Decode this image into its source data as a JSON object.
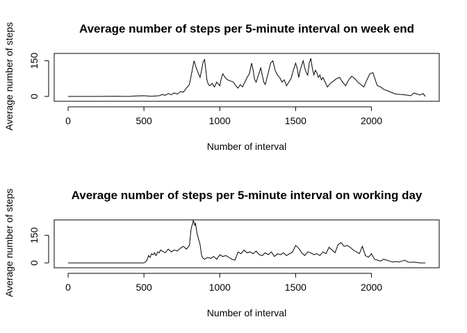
{
  "chart_data": [
    {
      "type": "line",
      "title": "Average number of steps per 5-minute interval on week end",
      "xlabel": "Number of interval",
      "ylabel": "Average number of steps",
      "xlim": [
        0,
        2355
      ],
      "ylim": [
        0,
        175
      ],
      "xticks": [
        0,
        500,
        1000,
        1500,
        2000
      ],
      "yticks": [
        0,
        150
      ],
      "series": [
        {
          "name": "week end",
          "x": [
            0,
            100,
            200,
            300,
            400,
            450,
            500,
            550,
            600,
            620,
            640,
            660,
            680,
            700,
            720,
            740,
            760,
            780,
            800,
            815,
            830,
            845,
            860,
            870,
            880,
            890,
            900,
            910,
            915,
            925,
            935,
            950,
            965,
            980,
            1000,
            1010,
            1020,
            1035,
            1050,
            1070,
            1090,
            1105,
            1120,
            1135,
            1150,
            1165,
            1180,
            1195,
            1210,
            1220,
            1230,
            1240,
            1250,
            1260,
            1270,
            1280,
            1290,
            1300,
            1310,
            1320,
            1335,
            1350,
            1365,
            1380,
            1395,
            1410,
            1425,
            1440,
            1455,
            1470,
            1485,
            1500,
            1510,
            1520,
            1530,
            1540,
            1550,
            1560,
            1570,
            1580,
            1590,
            1600,
            1610,
            1620,
            1630,
            1640,
            1650,
            1660,
            1670,
            1680,
            1695,
            1710,
            1730,
            1750,
            1770,
            1790,
            1810,
            1830,
            1850,
            1870,
            1890,
            1910,
            1930,
            1950,
            1970,
            1990,
            2010,
            2020,
            2030,
            2040,
            2060,
            2080,
            2100,
            2120,
            2140,
            2160,
            2200,
            2240,
            2260,
            2280,
            2300,
            2320,
            2340,
            2355
          ],
          "y": [
            0,
            0,
            0,
            1,
            0,
            2,
            3,
            1,
            3,
            8,
            5,
            12,
            7,
            15,
            10,
            20,
            18,
            35,
            50,
            100,
            150,
            120,
            95,
            80,
            110,
            145,
            155,
            100,
            70,
            50,
            45,
            55,
            40,
            60,
            45,
            75,
            95,
            80,
            70,
            65,
            60,
            45,
            35,
            50,
            40,
            60,
            80,
            95,
            140,
            110,
            70,
            60,
            80,
            100,
            120,
            90,
            60,
            50,
            75,
            100,
            140,
            150,
            110,
            90,
            80,
            60,
            70,
            45,
            60,
            75,
            110,
            140,
            120,
            80,
            110,
            130,
            150,
            120,
            100,
            90,
            140,
            160,
            120,
            90,
            110,
            100,
            80,
            90,
            70,
            80,
            60,
            40,
            55,
            65,
            75,
            80,
            60,
            45,
            70,
            85,
            75,
            60,
            50,
            40,
            70,
            95,
            100,
            80,
            60,
            45,
            40,
            30,
            25,
            20,
            15,
            10,
            8,
            5,
            3,
            15,
            10,
            6,
            12,
            0
          ]
        }
      ]
    },
    {
      "type": "line",
      "title": "Average number of steps per 5-minute interval on working day",
      "xlabel": "Number of interval",
      "ylabel": "Average number of steps",
      "xlim": [
        0,
        2355
      ],
      "ylim": [
        0,
        230
      ],
      "xticks": [
        0,
        500,
        1000,
        1500,
        2000
      ],
      "yticks": [
        0,
        150
      ],
      "series": [
        {
          "name": "working day",
          "x": [
            0,
            100,
            200,
            300,
            400,
            450,
            500,
            510,
            520,
            530,
            540,
            550,
            560,
            570,
            580,
            590,
            600,
            610,
            620,
            640,
            660,
            680,
            700,
            720,
            740,
            760,
            780,
            800,
            810,
            815,
            820,
            825,
            830,
            835,
            840,
            845,
            850,
            860,
            870,
            880,
            890,
            900,
            920,
            940,
            960,
            980,
            1000,
            1020,
            1040,
            1060,
            1080,
            1100,
            1120,
            1140,
            1160,
            1180,
            1200,
            1220,
            1240,
            1260,
            1280,
            1300,
            1320,
            1340,
            1360,
            1380,
            1400,
            1420,
            1440,
            1460,
            1480,
            1500,
            1520,
            1540,
            1560,
            1580,
            1600,
            1620,
            1640,
            1660,
            1680,
            1700,
            1720,
            1740,
            1760,
            1780,
            1800,
            1820,
            1840,
            1860,
            1880,
            1900,
            1920,
            1940,
            1960,
            1980,
            2000,
            2020,
            2040,
            2060,
            2080,
            2100,
            2120,
            2140,
            2160,
            2180,
            2200,
            2220,
            2240,
            2260,
            2280,
            2300,
            2320,
            2355
          ],
          "y": [
            0,
            0,
            0,
            0,
            0,
            0,
            0,
            5,
            15,
            40,
            30,
            50,
            45,
            55,
            40,
            60,
            55,
            70,
            65,
            55,
            75,
            60,
            70,
            65,
            80,
            90,
            75,
            95,
            180,
            200,
            210,
            230,
            220,
            205,
            215,
            190,
            160,
            130,
            100,
            40,
            25,
            20,
            30,
            25,
            35,
            20,
            45,
            35,
            40,
            30,
            20,
            15,
            60,
            50,
            70,
            55,
            60,
            50,
            65,
            45,
            40,
            55,
            45,
            60,
            35,
            50,
            45,
            55,
            40,
            50,
            60,
            95,
            80,
            55,
            40,
            60,
            55,
            45,
            50,
            40,
            60,
            50,
            85,
            70,
            55,
            100,
            110,
            90,
            95,
            85,
            70,
            60,
            50,
            90,
            40,
            30,
            50,
            20,
            15,
            10,
            20,
            15,
            10,
            5,
            8,
            5,
            10,
            15,
            5,
            3,
            5,
            2,
            0,
            0
          ]
        }
      ]
    }
  ]
}
